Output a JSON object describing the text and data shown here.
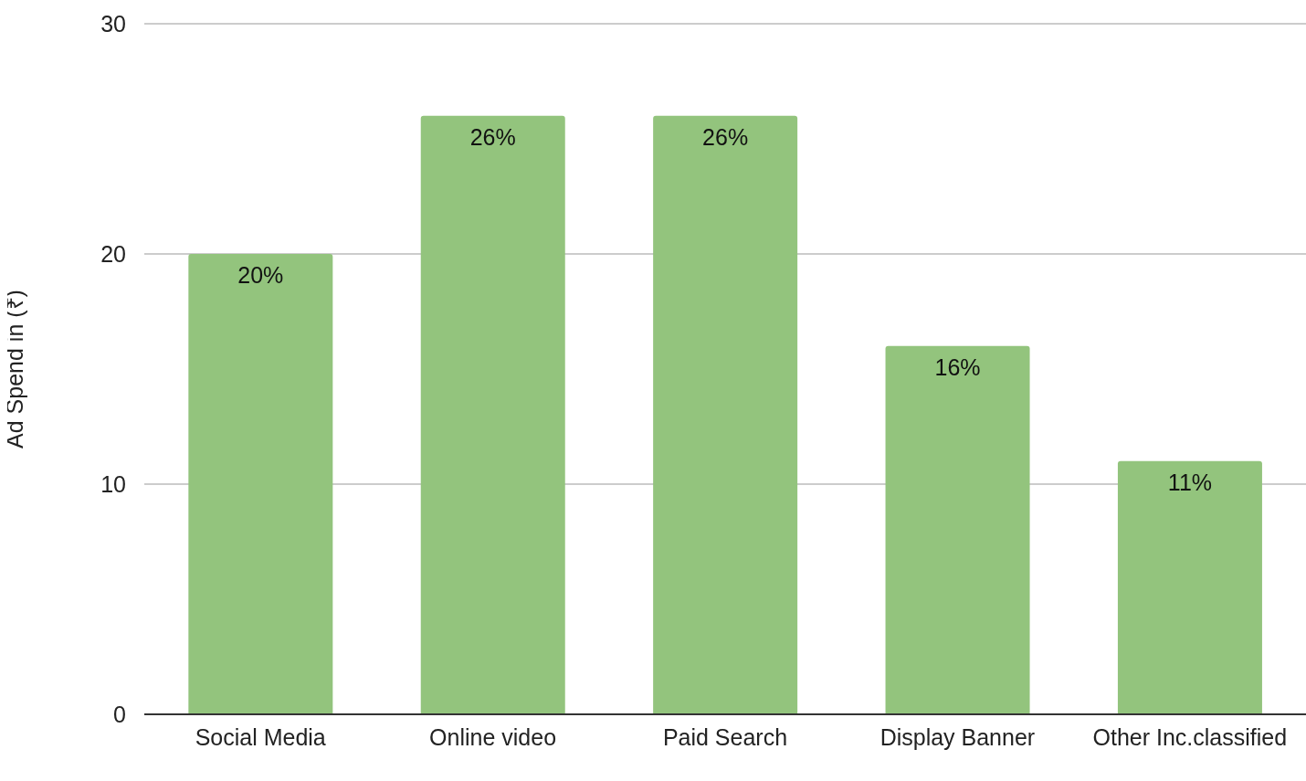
{
  "chart_data": {
    "type": "bar",
    "ylabel": "Ad Spend in (₹)",
    "categories": [
      "Social Media",
      "Online video",
      "Paid Search",
      "Display Banner",
      "Other Inc.classified"
    ],
    "values": [
      20,
      26,
      26,
      16,
      11
    ],
    "value_labels": [
      "20%",
      "26%",
      "26%",
      "16%",
      "11%"
    ],
    "color": "#93c47d",
    "ylim": [
      0,
      30
    ],
    "yticks": [
      0,
      10,
      20,
      30
    ],
    "grid": "y"
  }
}
